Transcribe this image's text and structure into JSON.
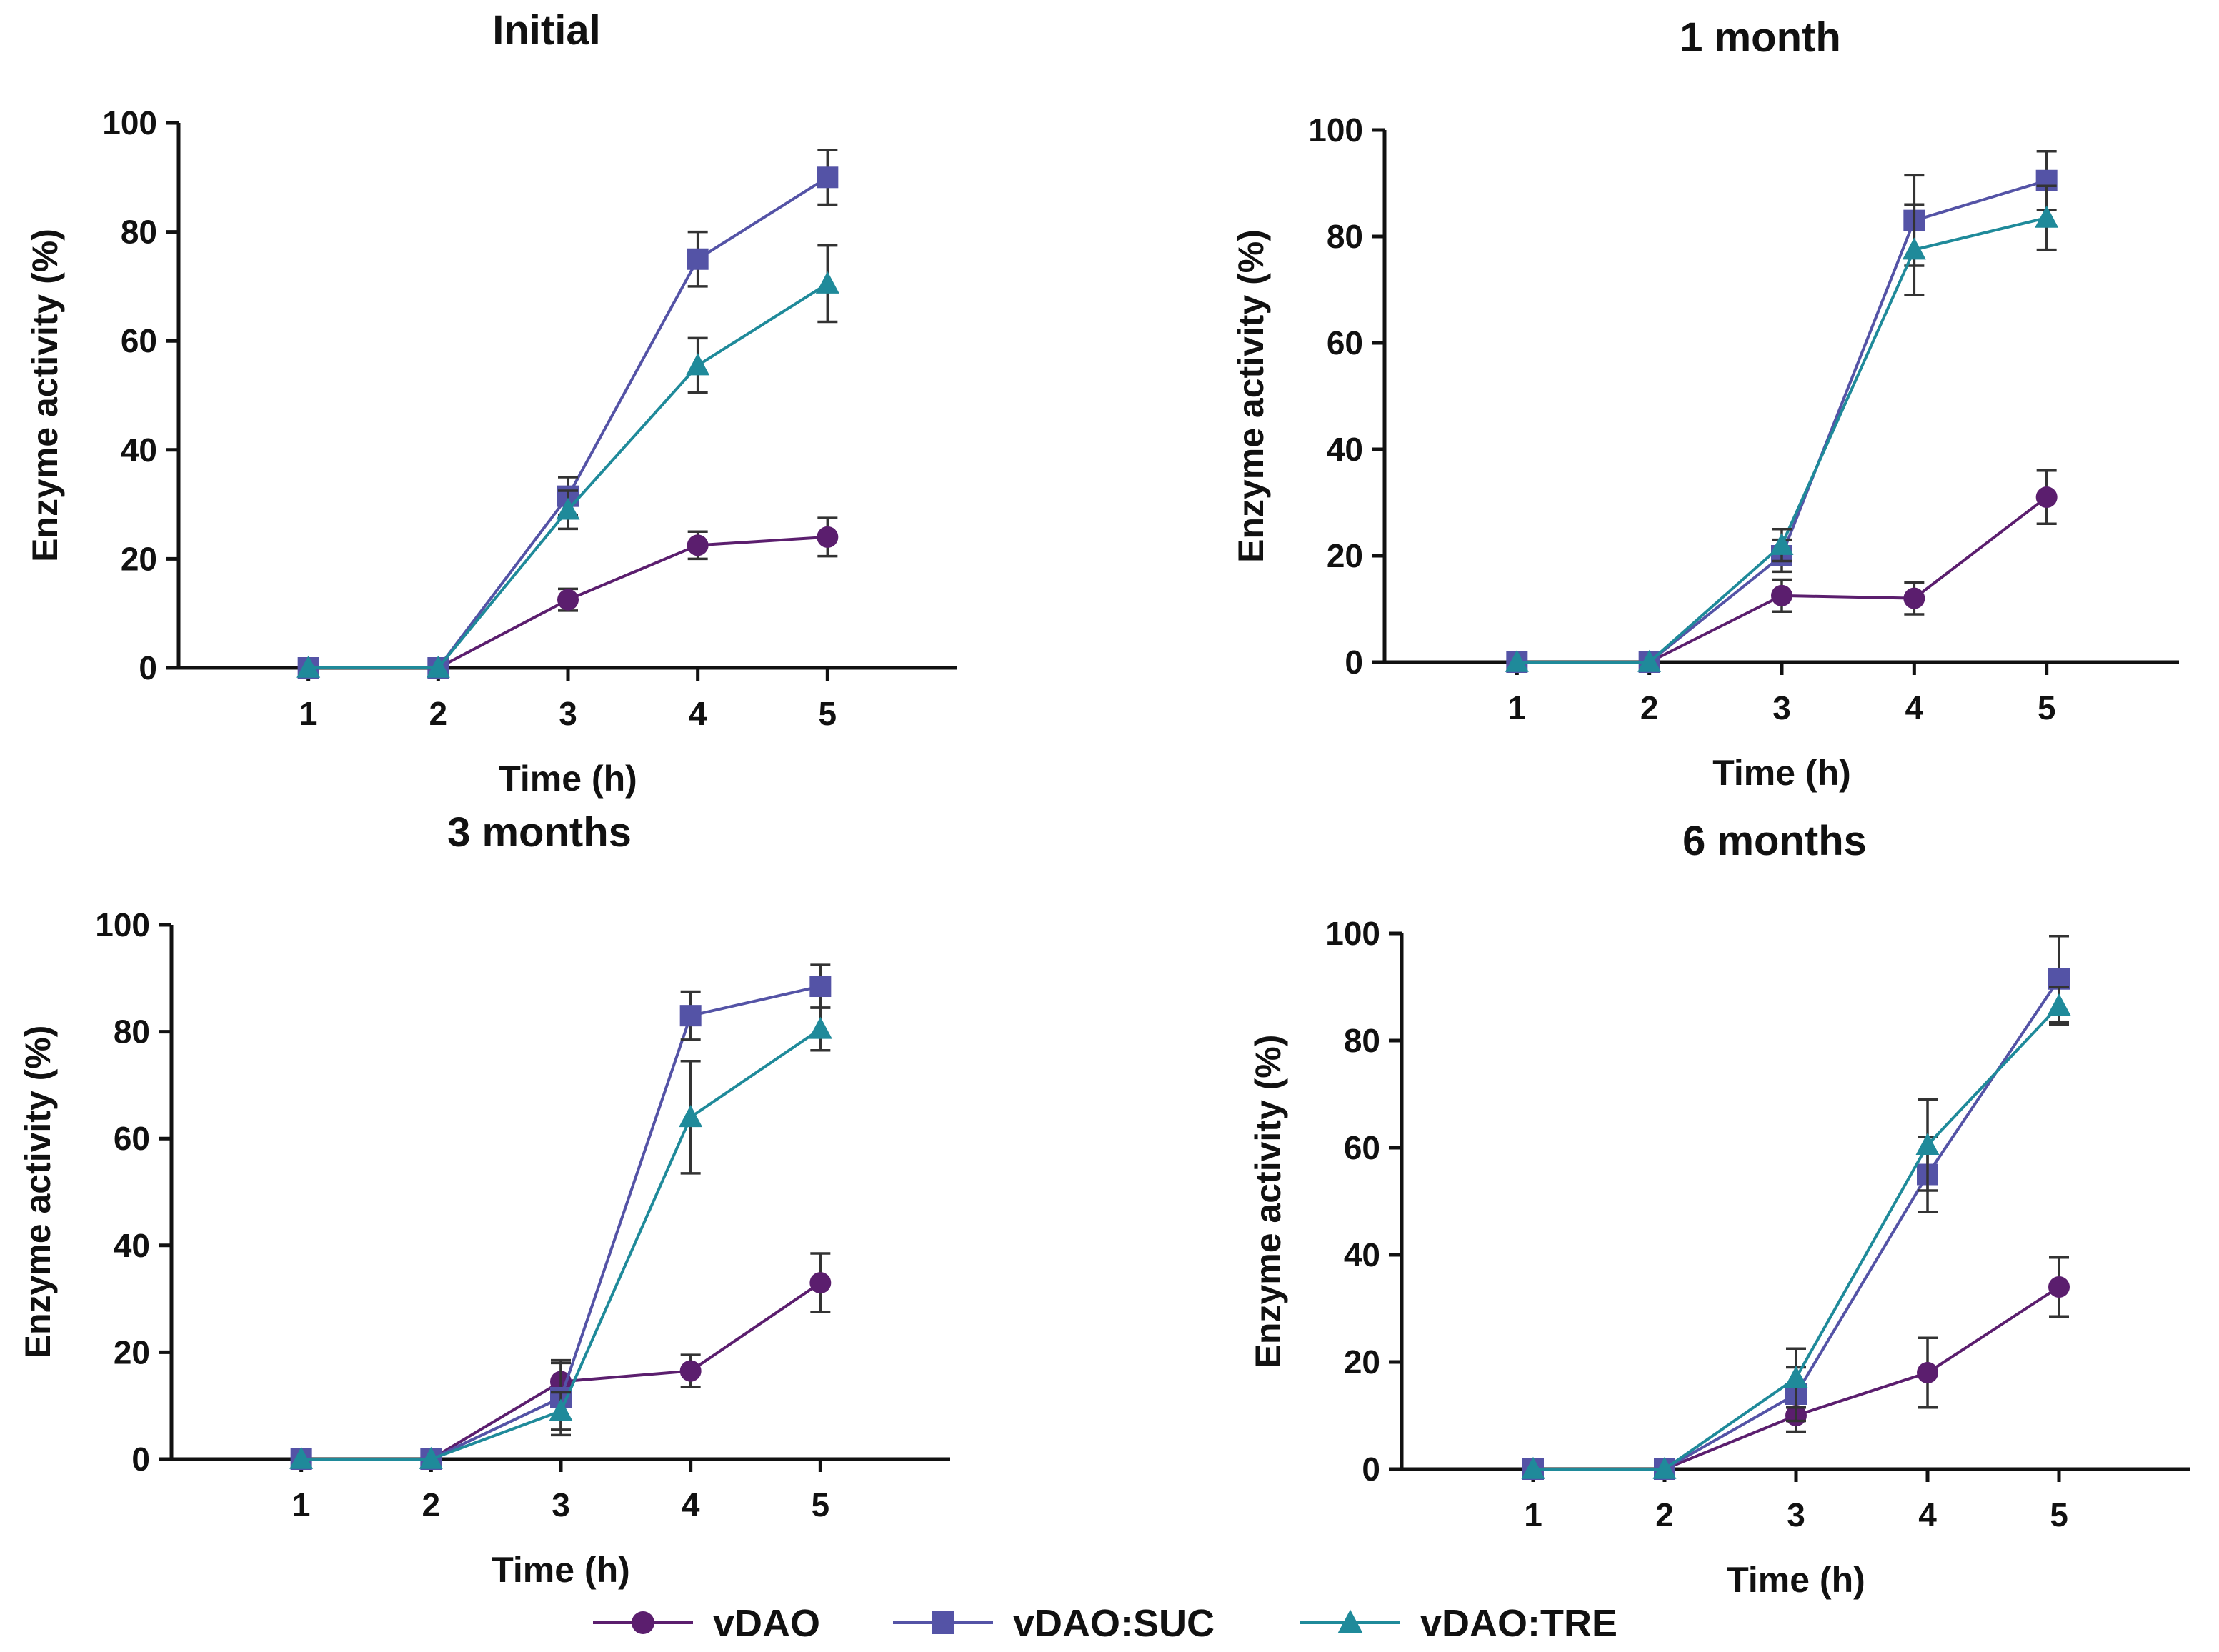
{
  "chart_data": [
    {
      "type": "line",
      "title": "Initial",
      "xlabel": "Time (h)",
      "ylabel": "Enzyme activity (%)",
      "x": [
        1,
        2,
        3,
        4,
        5
      ],
      "xlim": [
        0,
        6
      ],
      "ylim": [
        0,
        100
      ],
      "yticks": [
        0,
        20,
        40,
        60,
        80,
        100
      ],
      "series": [
        {
          "name": "vDAO",
          "values": [
            0,
            0,
            12.5,
            22.5,
            24
          ],
          "errors": [
            0,
            0,
            2,
            2.5,
            3.5
          ]
        },
        {
          "name": "vDAO:SUC",
          "values": [
            0,
            0,
            31.5,
            75,
            90
          ],
          "errors": [
            0,
            0,
            3.5,
            5,
            5
          ]
        },
        {
          "name": "vDAO:TRE",
          "values": [
            0,
            0,
            29,
            55.5,
            70.5
          ],
          "errors": [
            0,
            0,
            3.5,
            5,
            7
          ]
        }
      ]
    },
    {
      "type": "line",
      "title": "1 month",
      "xlabel": "Time (h)",
      "ylabel": "Enzyme activity (%)",
      "x": [
        1,
        2,
        3,
        4,
        5
      ],
      "xlim": [
        0,
        6
      ],
      "ylim": [
        0,
        100
      ],
      "yticks": [
        0,
        20,
        40,
        60,
        80,
        100
      ],
      "series": [
        {
          "name": "vDAO",
          "values": [
            0,
            0,
            12.5,
            12,
            31
          ],
          "errors": [
            0,
            0,
            3,
            3,
            5
          ]
        },
        {
          "name": "vDAO:SUC",
          "values": [
            0,
            0,
            20,
            83,
            90.5
          ],
          "errors": [
            0,
            0,
            3,
            8.5,
            5.5
          ]
        },
        {
          "name": "vDAO:TRE",
          "values": [
            0,
            0,
            22,
            77.5,
            83.5
          ],
          "errors": [
            0,
            0,
            3,
            8.5,
            6
          ]
        }
      ]
    },
    {
      "type": "line",
      "title": "3 months",
      "xlabel": "Time (h)",
      "ylabel": "Enzyme activity (%)",
      "x": [
        1,
        2,
        3,
        4,
        5
      ],
      "xlim": [
        0,
        6
      ],
      "ylim": [
        0,
        100
      ],
      "yticks": [
        0,
        20,
        40,
        60,
        80,
        100
      ],
      "series": [
        {
          "name": "vDAO",
          "values": [
            0,
            0,
            14.5,
            16.5,
            33
          ],
          "errors": [
            0,
            0,
            3.5,
            3,
            5.5
          ]
        },
        {
          "name": "vDAO:SUC",
          "values": [
            0,
            0,
            11.5,
            83,
            88.5
          ],
          "errors": [
            0,
            0,
            7,
            4.5,
            4
          ]
        },
        {
          "name": "vDAO:TRE",
          "values": [
            0,
            0,
            9,
            64,
            80.5
          ],
          "errors": [
            0,
            0,
            3.5,
            10.5,
            4
          ]
        }
      ]
    },
    {
      "type": "line",
      "title": "6 months",
      "xlabel": "Time (h)",
      "ylabel": "Enzyme activity (%)",
      "x": [
        1,
        2,
        3,
        4,
        5
      ],
      "xlim": [
        0,
        6
      ],
      "ylim": [
        0,
        100
      ],
      "yticks": [
        0,
        20,
        40,
        60,
        80,
        100
      ],
      "series": [
        {
          "name": "vDAO",
          "values": [
            0,
            0,
            10,
            18,
            34
          ],
          "errors": [
            0,
            0,
            3,
            6.5,
            5.5
          ]
        },
        {
          "name": "vDAO:SUC",
          "values": [
            0,
            0,
            14,
            55,
            91.5
          ],
          "errors": [
            0,
            0,
            5,
            7,
            8
          ]
        },
        {
          "name": "vDAO:TRE",
          "values": [
            0,
            0,
            17,
            60.5,
            86.5
          ],
          "errors": [
            0,
            0,
            5.5,
            8.5,
            3.5
          ]
        }
      ]
    }
  ],
  "legend": [
    {
      "name": "vDAO",
      "marker": "circle",
      "color": "#5b1e6e"
    },
    {
      "name": "vDAO:SUC",
      "marker": "square",
      "color": "#5453a6"
    },
    {
      "name": "vDAO:TRE",
      "marker": "triangle",
      "color": "#1f8a9a"
    }
  ]
}
